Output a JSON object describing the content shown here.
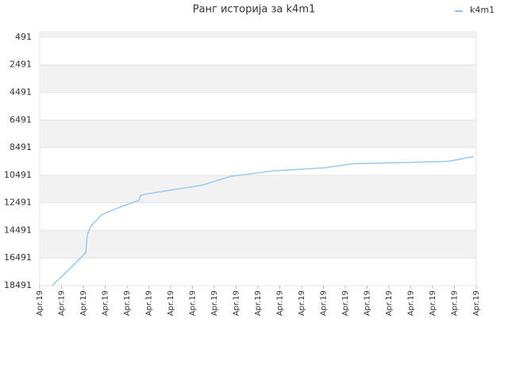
{
  "chart_data": {
    "type": "line",
    "title": "Ранг историја за k4m1",
    "x": [
      0.58,
      0.65,
      1.27,
      1.56,
      2.11,
      2.18,
      2.33,
      2.84,
      3.64,
      4.55,
      4.62,
      4.91,
      7.45,
      8.73,
      10.73,
      13.09,
      14.36,
      16.0,
      18.73,
      19.89
    ],
    "series": [
      {
        "name": "k4m1",
        "color": "#8ec3ee",
        "values": [
          18474,
          18358,
          17436,
          16975,
          16110,
          14843,
          14209,
          13344,
          12825,
          12306,
          11960,
          11845,
          11211,
          10577,
          10174,
          9943,
          9655,
          9597,
          9482,
          9136
        ]
      }
    ],
    "xlim": [
      0,
      20
    ],
    "xticks": [
      {
        "value": 0,
        "label": "Apr.19"
      },
      {
        "value": 1,
        "label": "Apr.19"
      },
      {
        "value": 2,
        "label": "Apr.19"
      },
      {
        "value": 3,
        "label": "Apr.19"
      },
      {
        "value": 4,
        "label": "Apr.19"
      },
      {
        "value": 5,
        "label": "Apr.19"
      },
      {
        "value": 6,
        "label": "Apr.19"
      },
      {
        "value": 7,
        "label": "Apr.19"
      },
      {
        "value": 8,
        "label": "Apr.19"
      },
      {
        "value": 9,
        "label": "Apr.19"
      },
      {
        "value": 10,
        "label": "Apr.19"
      },
      {
        "value": 11,
        "label": "Apr.19"
      },
      {
        "value": 12,
        "label": "Apr.19"
      },
      {
        "value": 13,
        "label": "Apr.19"
      },
      {
        "value": 14,
        "label": "Apr.19"
      },
      {
        "value": 15,
        "label": "Apr.19"
      },
      {
        "value": 16,
        "label": "Apr.19"
      },
      {
        "value": 17,
        "label": "Apr.19"
      },
      {
        "value": 18,
        "label": "Apr.19"
      },
      {
        "value": 19,
        "label": "Apr.19"
      },
      {
        "value": 20,
        "label": "Apr.19"
      }
    ],
    "ylim": [
      18491,
      91
    ],
    "yticks": [
      491,
      2491,
      4491,
      6491,
      8491,
      10491,
      12491,
      14491,
      16491,
      18491
    ],
    "grid": true,
    "legend": "top-right"
  }
}
